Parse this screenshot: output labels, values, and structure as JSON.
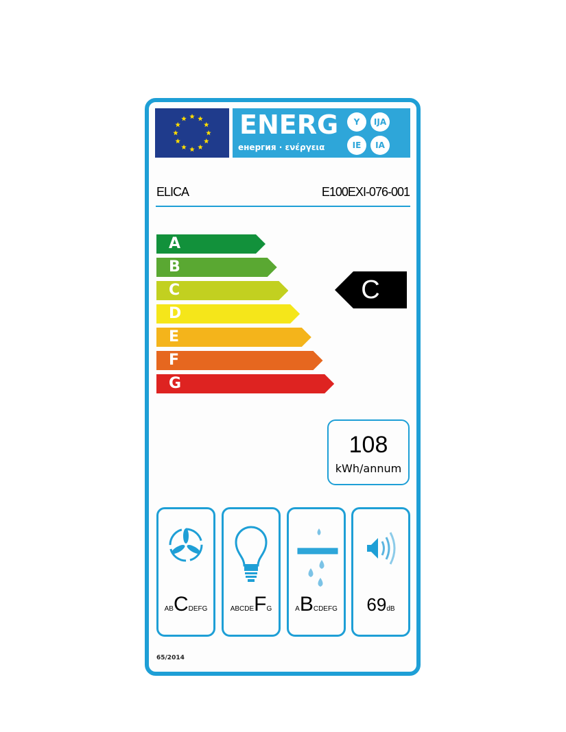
{
  "header": {
    "banner_title": "ENERG",
    "banner_subtitle": "енергия · ενέργεια",
    "language_suffixes": [
      "Y",
      "IJA",
      "IE",
      "IA"
    ]
  },
  "supplier": "ELICA",
  "model": "E100EXI-076-001",
  "scale": {
    "classes": [
      "A",
      "B",
      "C",
      "D",
      "E",
      "F",
      "G"
    ],
    "colors": [
      "#12913b",
      "#5aa832",
      "#c2d020",
      "#f5e61a",
      "#f4b41b",
      "#e6671f",
      "#de2321"
    ]
  },
  "energy_class": "C",
  "consumption": {
    "value": "108",
    "unit": "kWh/annum"
  },
  "ratings": [
    {
      "icon": "fan-icon",
      "before": "AB",
      "class": "C",
      "after": "DEFG"
    },
    {
      "icon": "light-bulb-icon",
      "before": "ABCDE",
      "class": "F",
      "after": "G"
    },
    {
      "icon": "grease-filter-icon",
      "before": "A",
      "class": "B",
      "after": "CDEFG"
    }
  ],
  "noise": {
    "icon": "speaker-icon",
    "value": "69",
    "unit": "dB"
  },
  "regulation": "65/2014",
  "colors": {
    "frame": "#1e9fd6",
    "banner": "#2ea6d9",
    "flag": "#1f3b8c",
    "stars": "#ffdd00"
  }
}
